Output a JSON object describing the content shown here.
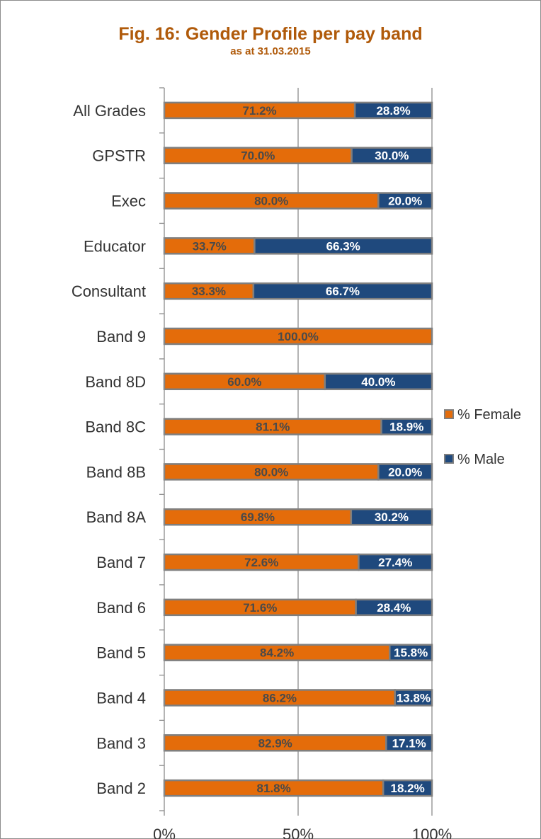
{
  "colors": {
    "female": "#e46c0a",
    "male": "#1f497d",
    "border": "#7f7f7f",
    "grid": "#8c8c8c",
    "title": "#b05a0a"
  },
  "chart_data": {
    "type": "bar",
    "orientation": "horizontal",
    "stacked": true,
    "percent_stacked": true,
    "title": "Fig. 16: Gender Profile per pay band",
    "subtitle": "as at 31.03.2015",
    "categories": [
      "All Grades",
      "GPSTR",
      "Exec",
      "Educator",
      "Consultant",
      "Band 9",
      "Band 8D",
      "Band 8C",
      "Band 8B",
      "Band 8A",
      "Band 7",
      "Band 6",
      "Band 5",
      "Band 4",
      "Band 3",
      "Band 2"
    ],
    "series": [
      {
        "name": "% Female",
        "values": [
          71.2,
          70.0,
          80.0,
          33.7,
          33.3,
          100.0,
          60.0,
          81.1,
          80.0,
          69.8,
          72.6,
          71.6,
          84.2,
          86.2,
          82.9,
          81.8
        ]
      },
      {
        "name": "% Male",
        "values": [
          28.8,
          30.0,
          20.0,
          66.3,
          66.7,
          0,
          40.0,
          18.9,
          20.0,
          30.2,
          27.4,
          28.4,
          15.8,
          13.8,
          17.1,
          18.2
        ]
      }
    ],
    "data_labels": {
      "female": [
        "71.2%",
        "70.0%",
        "80.0%",
        "33.7%",
        "33.3%",
        "100.0%",
        "60.0%",
        "81.1%",
        "80.0%",
        "69.8%",
        "72.6%",
        "71.6%",
        "84.2%",
        "86.2%",
        "82.9%",
        "81.8%"
      ],
      "male": [
        "28.8%",
        "30.0%",
        "20.0%",
        "66.3%",
        "66.7%",
        "",
        "40.0%",
        "18.9%",
        "20.0%",
        "30.2%",
        "27.4%",
        "28.4%",
        "15.8%",
        "13.8%",
        "17.1%",
        "18.2%"
      ]
    },
    "x_ticks": [
      "0%",
      "50%",
      "100%"
    ],
    "xlim": [
      0,
      100
    ],
    "grid": "vertical",
    "legend": {
      "position": "right",
      "items": [
        "% Female",
        "% Male"
      ]
    }
  }
}
